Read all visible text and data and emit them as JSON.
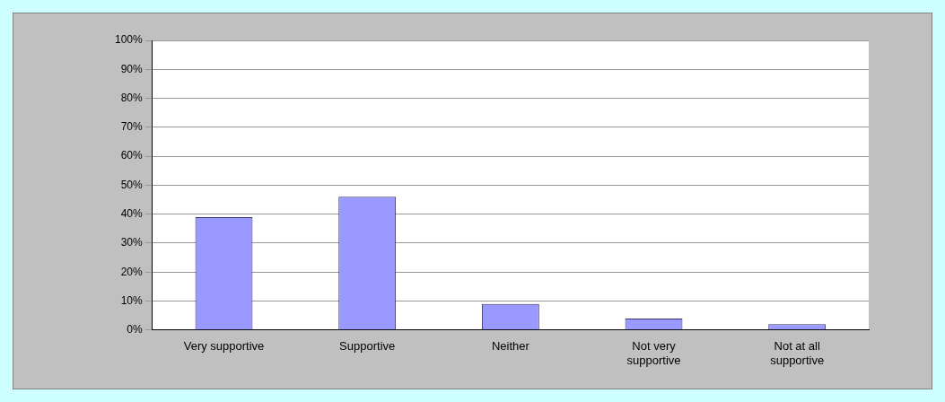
{
  "chart_data": {
    "type": "bar",
    "categories": [
      "Very supportive",
      "Supportive",
      "Neither",
      "Not very supportive",
      "Not at all supportive"
    ],
    "values": [
      39,
      46,
      9,
      4,
      2
    ],
    "color": "#9999ff",
    "ylim": [
      0,
      100
    ],
    "yticks": [
      {
        "value": 0,
        "label": "0%"
      },
      {
        "value": 10,
        "label": "10%"
      },
      {
        "value": 20,
        "label": "20%"
      },
      {
        "value": 30,
        "label": "30%"
      },
      {
        "value": 40,
        "label": "40%"
      },
      {
        "value": 50,
        "label": "50%"
      },
      {
        "value": 60,
        "label": "60%"
      },
      {
        "value": 70,
        "label": "70%"
      },
      {
        "value": 80,
        "label": "80%"
      },
      {
        "value": 90,
        "label": "90%"
      },
      {
        "value": 100,
        "label": "100%"
      }
    ],
    "grid": "y"
  }
}
